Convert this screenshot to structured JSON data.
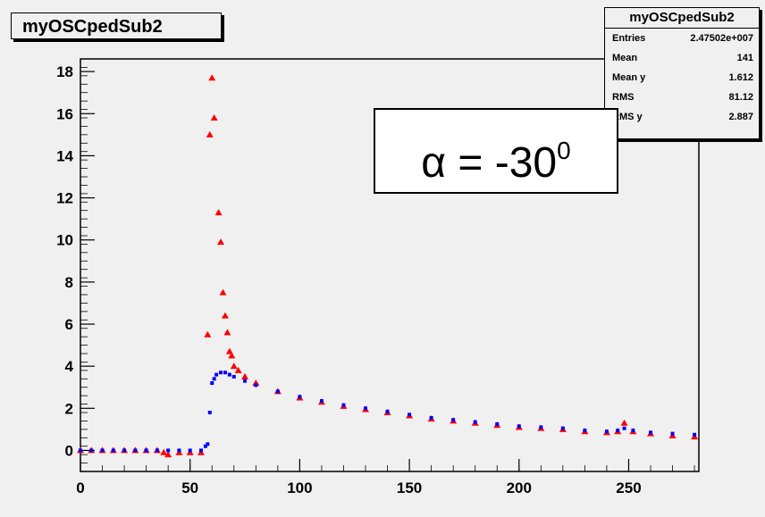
{
  "canvas": {
    "title": "myOSCpedSub2",
    "background": "#f0f0f0"
  },
  "stats": {
    "title": "myOSCpedSub2",
    "rows": [
      {
        "label": "Entries",
        "value": "2.47502e+007"
      },
      {
        "label": "Mean",
        "value": "141"
      },
      {
        "label": "Mean y",
        "value": "1.612"
      },
      {
        "label": "RMS",
        "value": "81.12"
      },
      {
        "label": "RMS y",
        "value": "2.887"
      }
    ]
  },
  "annotation": {
    "text": "α = -30",
    "superscript": "0"
  },
  "chart_data": {
    "type": "scatter",
    "title": "myOSCpedSub2",
    "xlabel": "",
    "ylabel": "",
    "xlim": [
      0,
      282
    ],
    "ylim": [
      -1,
      18.6
    ],
    "xticks": [
      0,
      50,
      100,
      150,
      200,
      250
    ],
    "yticks": [
      0,
      2,
      4,
      6,
      8,
      10,
      12,
      14,
      16,
      18
    ],
    "grid": false,
    "series": [
      {
        "color": "#ff0000",
        "marker": "triangle",
        "points": [
          [
            0,
            0.0
          ],
          [
            5,
            0.0
          ],
          [
            10,
            0.0
          ],
          [
            15,
            0.0
          ],
          [
            20,
            0.0
          ],
          [
            25,
            0.0
          ],
          [
            30,
            0.0
          ],
          [
            35,
            0.0
          ],
          [
            38,
            -0.1
          ],
          [
            40,
            -0.2
          ],
          [
            45,
            -0.1
          ],
          [
            50,
            -0.1
          ],
          [
            55,
            -0.1
          ],
          [
            58,
            5.5
          ],
          [
            59,
            15.0
          ],
          [
            60,
            17.7
          ],
          [
            61,
            15.8
          ],
          [
            63,
            11.3
          ],
          [
            64,
            9.9
          ],
          [
            65,
            7.5
          ],
          [
            66,
            6.4
          ],
          [
            67,
            5.6
          ],
          [
            68,
            4.7
          ],
          [
            69,
            4.5
          ],
          [
            70,
            4.0
          ],
          [
            72,
            3.8
          ],
          [
            75,
            3.5
          ],
          [
            80,
            3.2
          ],
          [
            90,
            2.8
          ],
          [
            100,
            2.5
          ],
          [
            110,
            2.3
          ],
          [
            120,
            2.1
          ],
          [
            130,
            1.95
          ],
          [
            140,
            1.8
          ],
          [
            150,
            1.65
          ],
          [
            160,
            1.5
          ],
          [
            170,
            1.4
          ],
          [
            180,
            1.3
          ],
          [
            190,
            1.2
          ],
          [
            200,
            1.1
          ],
          [
            210,
            1.05
          ],
          [
            220,
            1.0
          ],
          [
            230,
            0.9
          ],
          [
            240,
            0.85
          ],
          [
            245,
            0.9
          ],
          [
            248,
            1.3
          ],
          [
            252,
            0.9
          ],
          [
            260,
            0.8
          ],
          [
            270,
            0.7
          ],
          [
            280,
            0.65
          ]
        ]
      },
      {
        "color": "#0000ff",
        "marker": "square",
        "points": [
          [
            0,
            0.0
          ],
          [
            5,
            0.0
          ],
          [
            10,
            0.0
          ],
          [
            15,
            0.0
          ],
          [
            20,
            0.0
          ],
          [
            25,
            0.0
          ],
          [
            30,
            0.0
          ],
          [
            35,
            0.0
          ],
          [
            40,
            0.0
          ],
          [
            45,
            0.0
          ],
          [
            50,
            0.0
          ],
          [
            55,
            0.0
          ],
          [
            57,
            0.2
          ],
          [
            58,
            0.3
          ],
          [
            59,
            1.8
          ],
          [
            60,
            3.2
          ],
          [
            61,
            3.4
          ],
          [
            62,
            3.6
          ],
          [
            64,
            3.7
          ],
          [
            66,
            3.7
          ],
          [
            68,
            3.6
          ],
          [
            70,
            3.5
          ],
          [
            75,
            3.3
          ],
          [
            80,
            3.1
          ],
          [
            90,
            2.8
          ],
          [
            100,
            2.55
          ],
          [
            110,
            2.35
          ],
          [
            120,
            2.15
          ],
          [
            130,
            2.0
          ],
          [
            140,
            1.85
          ],
          [
            150,
            1.7
          ],
          [
            160,
            1.55
          ],
          [
            170,
            1.45
          ],
          [
            180,
            1.35
          ],
          [
            190,
            1.25
          ],
          [
            200,
            1.15
          ],
          [
            210,
            1.1
          ],
          [
            220,
            1.05
          ],
          [
            230,
            0.95
          ],
          [
            240,
            0.9
          ],
          [
            245,
            0.95
          ],
          [
            248,
            1.05
          ],
          [
            252,
            0.95
          ],
          [
            260,
            0.85
          ],
          [
            270,
            0.8
          ],
          [
            280,
            0.75
          ]
        ]
      }
    ]
  }
}
